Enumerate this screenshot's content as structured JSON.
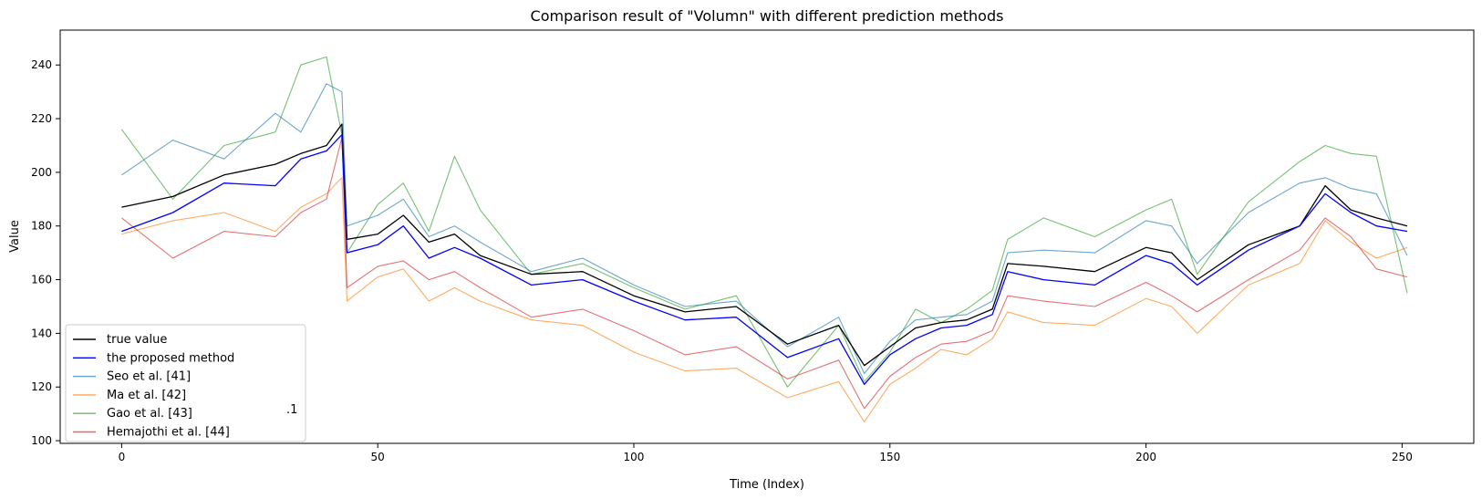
{
  "chart_data": {
    "type": "line",
    "title": "Comparison result of \"Volumn\" with different prediction methods",
    "xlabel": "Time (Index)",
    "ylabel": "Value",
    "xlim": [
      -12,
      264
    ],
    "ylim": [
      99,
      253
    ],
    "xticks": [
      0,
      50,
      100,
      150,
      200,
      250
    ],
    "yticks": [
      100,
      120,
      140,
      160,
      180,
      200,
      220,
      240
    ],
    "legend_position": "lower-left",
    "legend_extra_text": ".1",
    "series": [
      {
        "name": "true value",
        "color": "#000000",
        "x": [
          0,
          10,
          20,
          30,
          35,
          40,
          43,
          44,
          50,
          55,
          60,
          65,
          70,
          80,
          90,
          100,
          110,
          120,
          130,
          140,
          145,
          150,
          155,
          160,
          165,
          170,
          173,
          180,
          190,
          200,
          205,
          210,
          220,
          230,
          235,
          240,
          245,
          251
        ],
        "y": [
          187,
          191,
          199,
          203,
          207,
          210,
          218,
          175,
          177,
          184,
          174,
          177,
          169,
          162,
          163,
          154,
          148,
          150,
          136,
          143,
          128,
          135,
          142,
          144,
          145,
          149,
          166,
          165,
          163,
          172,
          170,
          160,
          173,
          180,
          195,
          186,
          183,
          180
        ]
      },
      {
        "name": "the proposed method",
        "color": "#0000ff",
        "x": [
          0,
          10,
          20,
          30,
          35,
          40,
          43,
          44,
          50,
          55,
          60,
          65,
          70,
          80,
          90,
          100,
          110,
          120,
          130,
          140,
          145,
          150,
          155,
          160,
          165,
          170,
          173,
          180,
          190,
          200,
          205,
          210,
          220,
          230,
          235,
          240,
          245,
          251
        ],
        "y": [
          178,
          185,
          196,
          195,
          205,
          208,
          214,
          170,
          173,
          180,
          168,
          172,
          168,
          158,
          160,
          152,
          145,
          146,
          131,
          138,
          121,
          132,
          138,
          142,
          143,
          147,
          163,
          160,
          158,
          169,
          166,
          158,
          171,
          180,
          192,
          185,
          180,
          178
        ]
      },
      {
        "name": "Seo et al. [41]",
        "color": "#1f77b4",
        "x": [
          0,
          10,
          20,
          30,
          35,
          40,
          43,
          44,
          50,
          55,
          60,
          65,
          70,
          80,
          90,
          100,
          110,
          120,
          130,
          140,
          145,
          150,
          155,
          160,
          165,
          170,
          173,
          180,
          190,
          200,
          205,
          210,
          220,
          230,
          235,
          240,
          245,
          251
        ],
        "y": [
          199,
          212,
          205,
          222,
          215,
          233,
          230,
          180,
          184,
          190,
          176,
          180,
          174,
          163,
          168,
          158,
          150,
          152,
          135,
          146,
          125,
          137,
          145,
          146,
          147,
          152,
          170,
          171,
          170,
          182,
          180,
          166,
          185,
          196,
          198,
          194,
          192,
          169
        ]
      },
      {
        "name": "Ma et al. [42]",
        "color": "#ff7f0e",
        "x": [
          0,
          10,
          20,
          30,
          35,
          40,
          43,
          44,
          50,
          55,
          60,
          65,
          70,
          80,
          90,
          100,
          110,
          120,
          130,
          140,
          145,
          150,
          155,
          160,
          165,
          170,
          173,
          180,
          190,
          200,
          205,
          210,
          220,
          230,
          235,
          240,
          245,
          251
        ],
        "y": [
          177,
          182,
          185,
          178,
          187,
          192,
          198,
          152,
          161,
          164,
          152,
          157,
          152,
          145,
          143,
          133,
          126,
          127,
          116,
          122,
          107,
          121,
          127,
          134,
          132,
          138,
          148,
          144,
          143,
          153,
          150,
          140,
          158,
          166,
          182,
          174,
          168,
          172
        ]
      },
      {
        "name": "Gao et al. [43]",
        "color": "#2ca02c",
        "x": [
          0,
          10,
          20,
          30,
          35,
          40,
          43,
          44,
          50,
          55,
          60,
          65,
          70,
          80,
          90,
          100,
          110,
          120,
          130,
          140,
          145,
          150,
          155,
          160,
          165,
          170,
          173,
          180,
          190,
          200,
          205,
          210,
          220,
          230,
          235,
          240,
          245,
          251
        ],
        "y": [
          216,
          190,
          210,
          215,
          240,
          243,
          214,
          170,
          188,
          196,
          178,
          206,
          186,
          162,
          166,
          157,
          149,
          154,
          120,
          143,
          122,
          133,
          149,
          144,
          149,
          156,
          175,
          183,
          176,
          186,
          190,
          162,
          189,
          204,
          210,
          207,
          206,
          155
        ]
      },
      {
        "name": "Hemajothi et al. [44]",
        "color": "#d62728",
        "x": [
          0,
          10,
          20,
          30,
          35,
          40,
          43,
          44,
          50,
          55,
          60,
          65,
          70,
          80,
          90,
          100,
          110,
          120,
          130,
          140,
          145,
          150,
          155,
          160,
          165,
          170,
          173,
          180,
          190,
          200,
          205,
          210,
          220,
          230,
          235,
          240,
          245,
          251
        ],
        "y": [
          183,
          168,
          178,
          176,
          185,
          190,
          213,
          157,
          165,
          167,
          160,
          163,
          157,
          146,
          149,
          141,
          132,
          135,
          123,
          130,
          112,
          124,
          131,
          136,
          137,
          141,
          154,
          152,
          150,
          159,
          154,
          148,
          160,
          171,
          183,
          176,
          164,
          161
        ]
      }
    ]
  }
}
